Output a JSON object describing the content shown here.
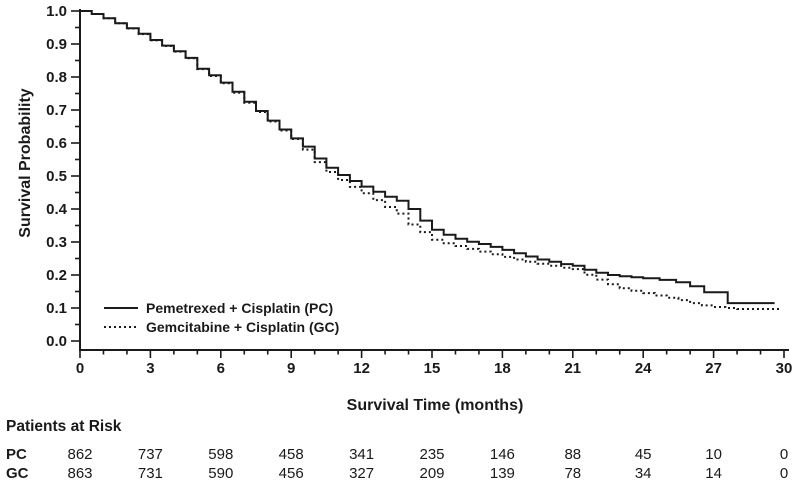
{
  "chart_data": {
    "type": "line",
    "subtype": "kaplan-meier-step",
    "title": "",
    "xlabel": "Survival Time (months)",
    "ylabel": "Survival Probability",
    "xlim": [
      0,
      30
    ],
    "ylim": [
      0.0,
      1.0
    ],
    "x_ticks": [
      0,
      3,
      6,
      9,
      12,
      15,
      18,
      21,
      24,
      27,
      30
    ],
    "x_minor_step": 1,
    "y_ticks": [
      1.0,
      0.9,
      0.8,
      0.7,
      0.6,
      0.5,
      0.4,
      0.3,
      0.2,
      0.1,
      0.0
    ],
    "y_minor_step": 0.05,
    "grid": false,
    "line_color": "#1a1a1a",
    "legend_position": "inside-lower-left",
    "series": [
      {
        "code": "PC",
        "name": "Pemetrexed + Cisplatin (PC)",
        "style": "solid",
        "color": "#1a1a1a",
        "points": [
          [
            0,
            1.0
          ],
          [
            0.5,
            0.991
          ],
          [
            1,
            0.978
          ],
          [
            1.5,
            0.963
          ],
          [
            2,
            0.948
          ],
          [
            2.5,
            0.931
          ],
          [
            3,
            0.912
          ],
          [
            3.5,
            0.895
          ],
          [
            4,
            0.878
          ],
          [
            4.5,
            0.858
          ],
          [
            5,
            0.825
          ],
          [
            5.5,
            0.805
          ],
          [
            6,
            0.783
          ],
          [
            6.5,
            0.755
          ],
          [
            7,
            0.725
          ],
          [
            7.5,
            0.697
          ],
          [
            8,
            0.668
          ],
          [
            8.5,
            0.641
          ],
          [
            9,
            0.614
          ],
          [
            9.5,
            0.589
          ],
          [
            10,
            0.553
          ],
          [
            10.5,
            0.525
          ],
          [
            11,
            0.503
          ],
          [
            11.5,
            0.485
          ],
          [
            12,
            0.468
          ],
          [
            12.5,
            0.452
          ],
          [
            13,
            0.437
          ],
          [
            13.5,
            0.425
          ],
          [
            14,
            0.4
          ],
          [
            14.5,
            0.365
          ],
          [
            15,
            0.337
          ],
          [
            15.5,
            0.322
          ],
          [
            16,
            0.31
          ],
          [
            16.5,
            0.301
          ],
          [
            17,
            0.294
          ],
          [
            17.5,
            0.285
          ],
          [
            18,
            0.276
          ],
          [
            18.5,
            0.266
          ],
          [
            19,
            0.256
          ],
          [
            19.5,
            0.247
          ],
          [
            20,
            0.24
          ],
          [
            20.5,
            0.233
          ],
          [
            21,
            0.228
          ],
          [
            21.5,
            0.216
          ],
          [
            22,
            0.207
          ],
          [
            22.5,
            0.2
          ],
          [
            23,
            0.196
          ],
          [
            23.5,
            0.193
          ],
          [
            24,
            0.19
          ],
          [
            24.7,
            0.185
          ],
          [
            25.4,
            0.178
          ],
          [
            26,
            0.166
          ],
          [
            26.6,
            0.148
          ],
          [
            27.6,
            0.115
          ],
          [
            29.6,
            0.115
          ]
        ]
      },
      {
        "code": "GC",
        "name": "Gemcitabine + Cisplatin (GC)",
        "style": "dashed",
        "color": "#1a1a1a",
        "points": [
          [
            0,
            1.0
          ],
          [
            0.5,
            0.991
          ],
          [
            1,
            0.978
          ],
          [
            1.5,
            0.963
          ],
          [
            2,
            0.947
          ],
          [
            2.5,
            0.93
          ],
          [
            3,
            0.911
          ],
          [
            3.5,
            0.894
          ],
          [
            4,
            0.877
          ],
          [
            4.5,
            0.857
          ],
          [
            5,
            0.824
          ],
          [
            5.5,
            0.803
          ],
          [
            6,
            0.781
          ],
          [
            6.5,
            0.752
          ],
          [
            7,
            0.722
          ],
          [
            7.5,
            0.694
          ],
          [
            8,
            0.665
          ],
          [
            8.5,
            0.638
          ],
          [
            9,
            0.612
          ],
          [
            9.5,
            0.58
          ],
          [
            10,
            0.542
          ],
          [
            10.5,
            0.512
          ],
          [
            11,
            0.488
          ],
          [
            11.5,
            0.467
          ],
          [
            12,
            0.448
          ],
          [
            12.5,
            0.427
          ],
          [
            13,
            0.406
          ],
          [
            13.5,
            0.386
          ],
          [
            14,
            0.353
          ],
          [
            14.5,
            0.33
          ],
          [
            15,
            0.307
          ],
          [
            15.5,
            0.296
          ],
          [
            16,
            0.288
          ],
          [
            16.5,
            0.279
          ],
          [
            17,
            0.271
          ],
          [
            17.5,
            0.263
          ],
          [
            18,
            0.255
          ],
          [
            18.5,
            0.247
          ],
          [
            19,
            0.24
          ],
          [
            19.5,
            0.234
          ],
          [
            20,
            0.228
          ],
          [
            20.5,
            0.222
          ],
          [
            21,
            0.218
          ],
          [
            21.5,
            0.201
          ],
          [
            22,
            0.186
          ],
          [
            22.5,
            0.172
          ],
          [
            23,
            0.16
          ],
          [
            23.5,
            0.152
          ],
          [
            24,
            0.145
          ],
          [
            24.5,
            0.138
          ],
          [
            25,
            0.131
          ],
          [
            25.5,
            0.124
          ],
          [
            26,
            0.115
          ],
          [
            26.5,
            0.108
          ],
          [
            27,
            0.103
          ],
          [
            27.5,
            0.1
          ],
          [
            28,
            0.097
          ],
          [
            29.8,
            0.097
          ]
        ]
      }
    ]
  },
  "risk_table": {
    "title": "Patients at Risk",
    "time_points": [
      0,
      3,
      6,
      9,
      12,
      15,
      18,
      21,
      24,
      27,
      30
    ],
    "rows": [
      {
        "label": "PC",
        "values": [
          862,
          737,
          598,
          458,
          341,
          235,
          146,
          88,
          45,
          10,
          0
        ]
      },
      {
        "label": "GC",
        "values": [
          863,
          731,
          590,
          456,
          327,
          209,
          139,
          78,
          34,
          14,
          0
        ]
      }
    ]
  }
}
